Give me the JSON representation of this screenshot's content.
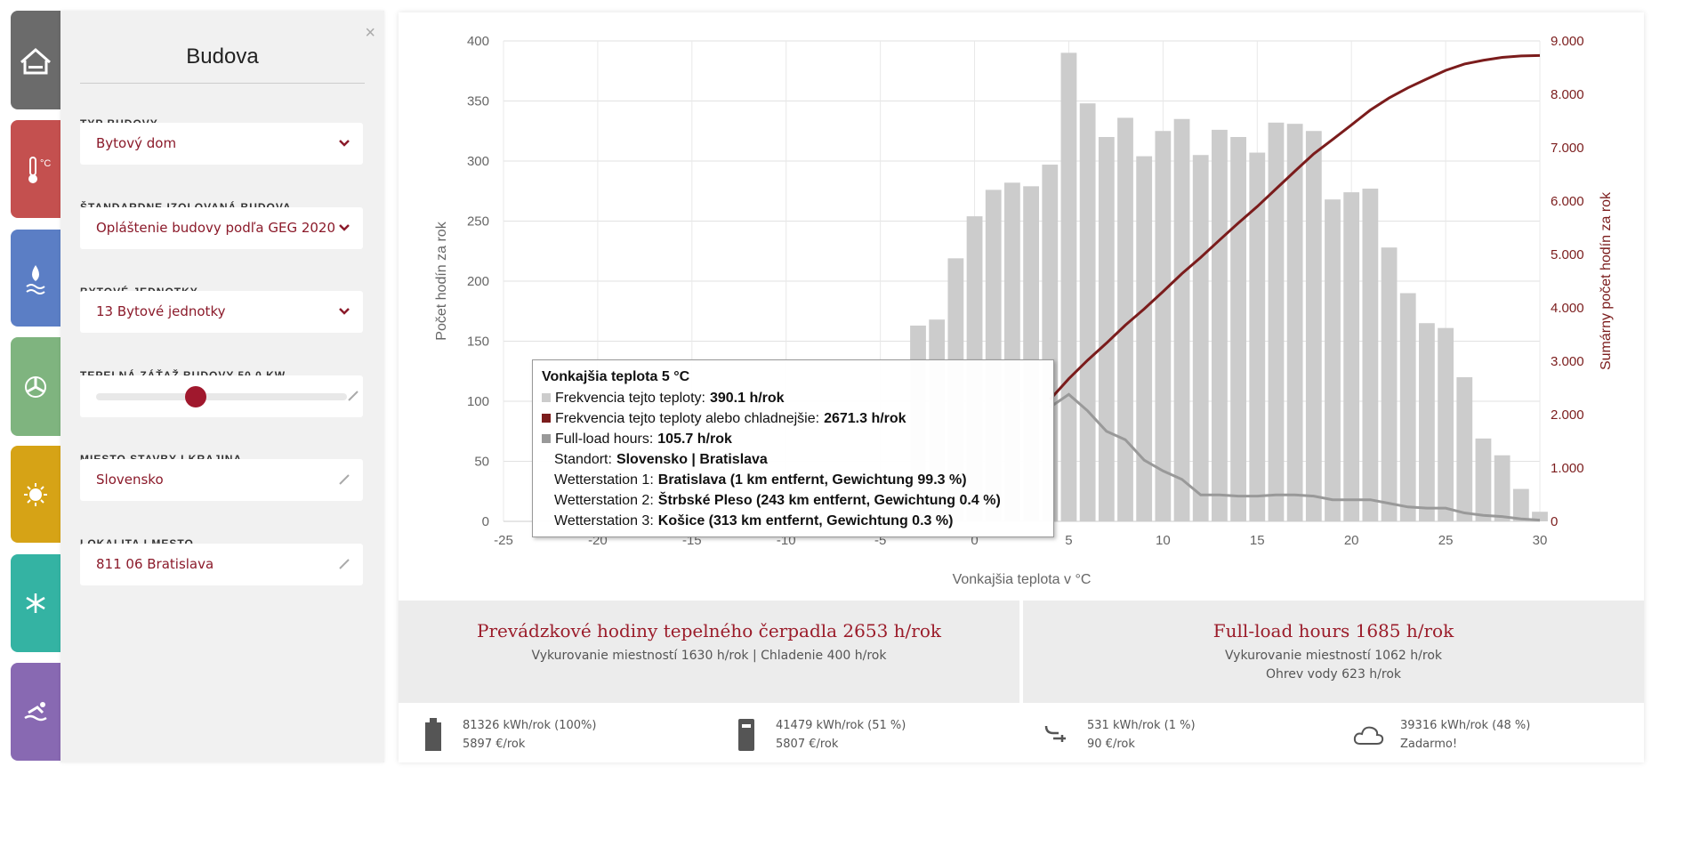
{
  "sidebar": {
    "title": "Budova",
    "close": "×",
    "fields": [
      {
        "label": "TYP BUDOVY",
        "value": "Bytový dom"
      },
      {
        "label": "ŠTANDARDNE IZOLOVANÁ BUDOVA",
        "value": "Opláštenie budovy podľa GEG 2020"
      },
      {
        "label": "BYTOVÉ JEDNOTKY",
        "value": "13 Bytové jednotky"
      },
      {
        "label": "TEPELNÁ ZÁŤAŽ BUDOVY 50,0 KW"
      },
      {
        "label": "MIESTO STAVBY I KRAJINA",
        "value": "Slovensko"
      },
      {
        "label": "LOKALITA I MESTO",
        "value": "811 06 Bratislava"
      }
    ]
  },
  "chart_data": {
    "type": "bar",
    "xlabel": "Vonkajšia teplota v °C",
    "ylabel": "Počet hodín za rok",
    "y2label": "Sumárny počet hodín za rok",
    "x": [
      -3,
      -2,
      -1,
      0,
      1,
      2,
      3,
      4,
      5,
      6,
      7,
      8,
      9,
      10,
      11,
      12,
      13,
      14,
      15,
      16,
      17,
      18,
      19,
      20,
      21,
      22,
      23,
      24,
      25,
      26,
      27,
      28,
      29,
      30
    ],
    "series": [
      {
        "name": "Frekvencia tejto teploty",
        "type": "bar",
        "color": "#cccccc",
        "values": [
          163,
          168,
          219,
          254,
          276,
          282,
          279,
          297,
          390.1,
          348,
          320,
          336,
          304,
          325,
          335,
          305,
          326,
          320,
          307,
          332,
          331,
          325,
          268,
          274,
          277,
          228,
          190,
          165,
          161,
          120,
          69,
          55,
          27,
          8
        ]
      },
      {
        "name": "Frekvencia tejto teploty alebo chladnejšie",
        "type": "line",
        "axis": "y2",
        "color": "#7b1c1c",
        "values": [
          null,
          null,
          null,
          null,
          null,
          null,
          null,
          2281,
          2671.3,
          3019,
          3339,
          3675,
          3979,
          4304,
          4639,
          4944,
          5270,
          5590,
          5897,
          6229,
          6560,
          6885,
          7153,
          7427,
          7704,
          7932,
          8122,
          8287,
          8448,
          8568,
          8637,
          8692,
          8719,
          8727
        ]
      },
      {
        "name": "Full-load hours",
        "type": "line",
        "color": "#999999",
        "values": [
          null,
          null,
          null,
          null,
          null,
          null,
          null,
          95,
          105.7,
          92,
          75,
          68,
          51,
          42,
          35,
          22,
          22,
          21,
          21,
          22,
          22,
          21,
          18,
          18,
          18,
          15,
          12,
          11,
          11,
          7,
          5,
          4,
          2,
          1
        ]
      }
    ],
    "xlim": [
      -25,
      30
    ],
    "xticks": [
      -25,
      -20,
      -15,
      -10,
      -5,
      0,
      5,
      10,
      15,
      20,
      25,
      30
    ],
    "ylim": [
      0,
      400
    ],
    "yticks": [
      0,
      50,
      100,
      150,
      200,
      250,
      300,
      350,
      400
    ],
    "y2lim": [
      0,
      9000
    ],
    "y2ticks": [
      0,
      {
        "value": 1000,
        "label": "1.000"
      },
      {
        "value": 2000,
        "label": "2.000"
      },
      {
        "value": 3000,
        "label": "3.000"
      },
      {
        "value": 4000,
        "label": "4.000"
      },
      {
        "value": 5000,
        "label": "5.000"
      },
      {
        "value": 6000,
        "label": "6.000"
      },
      {
        "value": 7000,
        "label": "7.000"
      },
      {
        "value": 8000,
        "label": "8.000"
      },
      {
        "value": 9000,
        "label": "9.000"
      }
    ],
    "grid": true,
    "tooltip": {
      "title": "Vonkajšia teplota 5 °C",
      "rows": [
        {
          "label": "Frekvencia tejto teploty:",
          "value": "390.1 h/rok",
          "color": "#cccccc"
        },
        {
          "label": "Frekvencia tejto teploty alebo chladnejšie:",
          "value": "2671.3 h/rok",
          "color": "#7b1c1c"
        },
        {
          "label": "Full-load hours:",
          "value": "105.7 h/rok",
          "color": "#999999"
        },
        {
          "label": "Standort:",
          "value": "Slovensko | Bratislava"
        },
        {
          "label": "Wetterstation 1:",
          "value": "Bratislava (1 km entfernt, Gewichtung 99.3 %)"
        },
        {
          "label": "Wetterstation 2:",
          "value": "Štrbské Pleso (243 km entfernt, Gewichtung 0.4 %)"
        },
        {
          "label": "Wetterstation 3:",
          "value": "Košice (313 km entfernt, Gewichtung 0.3 %)"
        }
      ]
    }
  },
  "summary": [
    {
      "title": "Prevádzkové hodiny tepelného čerpadla 2653 h/rok",
      "lines": [
        "Vykurovanie miestností 1630 h/rok | Chladenie 400 h/rok"
      ]
    },
    {
      "title": "Full-load hours 1685 h/rok",
      "lines": [
        "Vykurovanie miestností 1062 h/rok",
        "Ohrev vody 623 h/rok"
      ]
    }
  ],
  "energy": [
    {
      "line1": "81326 kWh/rok (100%)",
      "line2": "5897 €/rok"
    },
    {
      "line1": "41479 kWh/rok (51 %)",
      "line2": "5807 €/rok"
    },
    {
      "line1": "531 kWh/rok (1 %)",
      "line2": "90 €/rok"
    },
    {
      "line1": "39316 kWh/rok (48 %)",
      "line2": "Zadarmo!"
    }
  ]
}
